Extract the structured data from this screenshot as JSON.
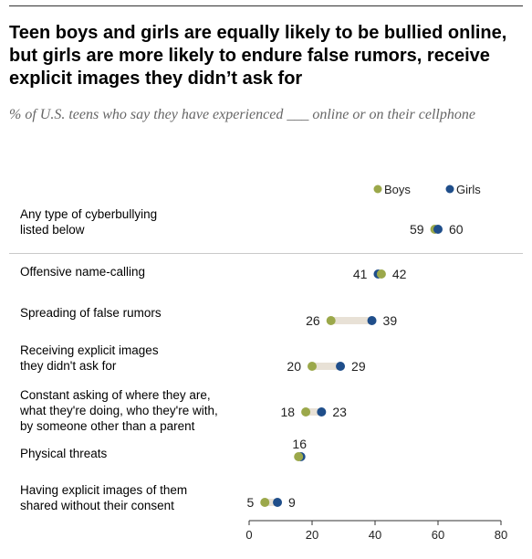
{
  "title": "Teen boys and girls are equally likely to be bullied online, but girls are more likely to endure false rumors, receive explicit images they didn’t ask for",
  "subtitle": "% of U.S. teens who say they have experienced ___ online or on their cellphone",
  "colors": {
    "boys": "#9ba84a",
    "girls": "#1f4e8a",
    "connector": "#e8e1d6",
    "axis": "#333333"
  },
  "chart_data": {
    "type": "dot",
    "xlim": [
      0,
      80
    ],
    "xticks": [
      0,
      20,
      40,
      60,
      80
    ],
    "series": [
      {
        "name": "Boys",
        "values": [
          59,
          42,
          26,
          20,
          18,
          16,
          5
        ]
      },
      {
        "name": "Girls",
        "values": [
          60,
          41,
          39,
          29,
          23,
          16,
          9
        ]
      }
    ],
    "categories": [
      "Any type of cyberbullying listed below",
      "Offensive name-calling",
      "Spreading of false rumors",
      "Receiving explicit images they didn't ask for",
      "Constant asking of where they are, what they're doing, who they're with, by someone other than a parent",
      "Physical threats",
      "Having explicit images of them shared without their consent"
    ],
    "rows": [
      {
        "label": [
          "Any type of cyberbullying",
          "listed below"
        ],
        "boys": 59,
        "girls": 60,
        "left_text": "59",
        "right_text": "60",
        "center_text": ""
      },
      {
        "label": [
          "Offensive name-calling"
        ],
        "boys": 42,
        "girls": 41,
        "left_text": "41",
        "right_text": "42",
        "center_text": ""
      },
      {
        "label": [
          "Spreading of false rumors"
        ],
        "boys": 26,
        "girls": 39,
        "left_text": "26",
        "right_text": "39",
        "center_text": ""
      },
      {
        "label": [
          "Receiving explicit images",
          "they didn't ask for"
        ],
        "boys": 20,
        "girls": 29,
        "left_text": "20",
        "right_text": "29",
        "center_text": ""
      },
      {
        "label": [
          "Constant asking of where they are,",
          "what they're doing, who they're with,",
          "by someone other than a parent"
        ],
        "boys": 18,
        "girls": 23,
        "left_text": "18",
        "right_text": "23",
        "center_text": ""
      },
      {
        "label": [
          "Physical threats"
        ],
        "boys": 16,
        "girls": 16,
        "left_text": "",
        "right_text": "",
        "center_text": "16"
      },
      {
        "label": [
          "Having explicit images of them",
          "shared without their consent"
        ],
        "boys": 5,
        "girls": 9,
        "left_text": "5",
        "right_text": "9",
        "center_text": ""
      }
    ]
  }
}
